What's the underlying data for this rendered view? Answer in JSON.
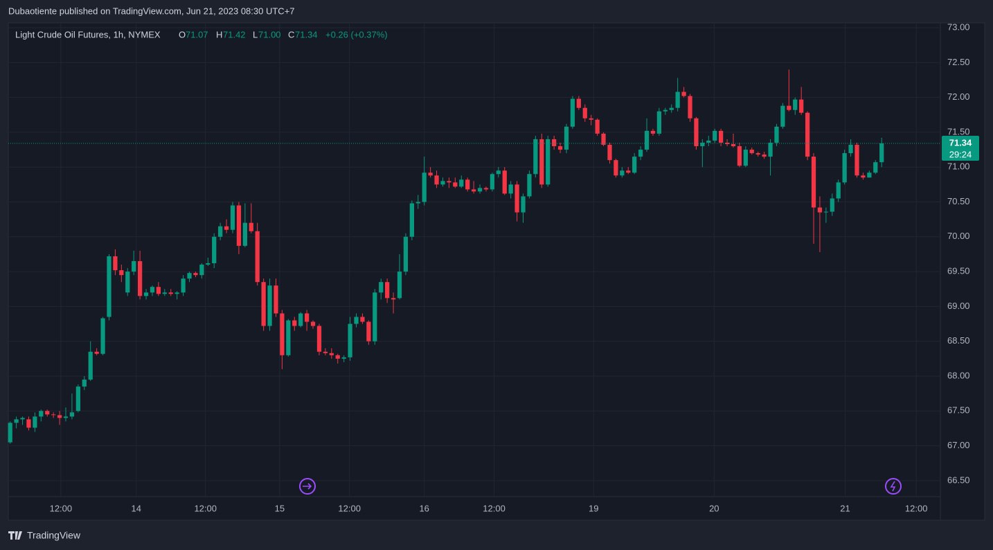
{
  "header": {
    "publisher": "Dubaotiente published on TradingView.com, Jun 21, 2023 08:30 UTC+7"
  },
  "legend": {
    "symbol": "Light Crude Oil Futures, 1h, NYMEX",
    "o_label": "O",
    "o": "71.07",
    "h_label": "H",
    "h": "71.42",
    "l_label": "L",
    "l": "71.00",
    "c_label": "C",
    "c": "71.34",
    "change": "+0.26 (+0.37%)"
  },
  "price_tag": {
    "price": "71.34",
    "countdown": "29:24"
  },
  "footer": {
    "logo": "TradingView"
  },
  "chart_data": {
    "type": "candlestick",
    "up_color": "#089981",
    "down_color": "#f23645",
    "grid": true,
    "ylim": [
      66.27,
      73.07
    ],
    "yticks": [
      {
        "value": 66.5,
        "label": "66.50"
      },
      {
        "value": 67,
        "label": "67.00"
      },
      {
        "value": 67.5,
        "label": "67.50"
      },
      {
        "value": 68,
        "label": "68.00"
      },
      {
        "value": 68.5,
        "label": "68.50"
      },
      {
        "value": 69,
        "label": "69.00"
      },
      {
        "value": 69.5,
        "label": "69.50"
      },
      {
        "value": 70,
        "label": "70.00"
      },
      {
        "value": 70.5,
        "label": "70.50"
      },
      {
        "value": 71,
        "label": "71.00"
      },
      {
        "value": 71.5,
        "label": "71.50"
      },
      {
        "value": 72,
        "label": "72.00"
      },
      {
        "value": 72.5,
        "label": "72.50"
      },
      {
        "value": 73,
        "label": "73.00"
      }
    ],
    "xlim": [
      -0.3,
      150.5
    ],
    "xticks": [
      {
        "value": 8.2,
        "label": "12:00"
      },
      {
        "value": 20.4,
        "label": "14"
      },
      {
        "value": 31.6,
        "label": "12:00"
      },
      {
        "value": 43.6,
        "label": "15"
      },
      {
        "value": 54.9,
        "label": "12:00"
      },
      {
        "value": 67.0,
        "label": "16"
      },
      {
        "value": 78.3,
        "label": "12:00"
      },
      {
        "value": 94.4,
        "label": "19"
      },
      {
        "value": 113.9,
        "label": "20"
      },
      {
        "value": 135.1,
        "label": "21"
      },
      {
        "value": 146.6,
        "label": "12:00"
      }
    ],
    "candles": [
      [
        67.05,
        67.35,
        67.03,
        67.33
      ],
      [
        67.33,
        67.42,
        67.25,
        67.38
      ],
      [
        67.38,
        67.42,
        67.3,
        67.4
      ],
      [
        67.38,
        67.42,
        67.22,
        67.26
      ],
      [
        67.26,
        67.48,
        67.2,
        67.42
      ],
      [
        67.42,
        67.52,
        67.35,
        67.5
      ],
      [
        67.5,
        67.52,
        67.42,
        67.45
      ],
      [
        67.45,
        67.48,
        67.4,
        67.44
      ],
      [
        67.44,
        67.5,
        67.3,
        67.4
      ],
      [
        67.4,
        67.55,
        67.35,
        67.42
      ],
      [
        67.42,
        67.75,
        67.38,
        67.48
      ],
      [
        67.5,
        67.88,
        67.48,
        67.85
      ],
      [
        67.85,
        68.0,
        67.8,
        67.95
      ],
      [
        67.95,
        68.5,
        67.93,
        68.35
      ],
      [
        68.35,
        68.4,
        68.3,
        68.32
      ],
      [
        68.32,
        68.85,
        68.3,
        68.83
      ],
      [
        68.85,
        69.75,
        68.8,
        69.72
      ],
      [
        69.72,
        69.82,
        69.45,
        69.52
      ],
      [
        69.52,
        69.6,
        69.35,
        69.45
      ],
      [
        69.2,
        69.55,
        69.15,
        69.5
      ],
      [
        69.5,
        69.8,
        69.45,
        69.65
      ],
      [
        69.65,
        69.8,
        69.1,
        69.15
      ],
      [
        69.15,
        69.25,
        69.1,
        69.2
      ],
      [
        69.2,
        69.3,
        69.15,
        69.28
      ],
      [
        69.28,
        69.35,
        69.15,
        69.18
      ],
      [
        69.18,
        69.25,
        69.15,
        69.2
      ],
      [
        69.2,
        69.25,
        69.15,
        69.18
      ],
      [
        69.18,
        69.22,
        69.1,
        69.2
      ],
      [
        69.2,
        69.45,
        69.15,
        69.4
      ],
      [
        69.4,
        69.5,
        69.35,
        69.48
      ],
      [
        69.48,
        69.5,
        69.42,
        69.45
      ],
      [
        69.45,
        69.62,
        69.4,
        69.6
      ],
      [
        69.6,
        69.7,
        69.58,
        69.62
      ],
      [
        69.62,
        70.05,
        69.55,
        70.0
      ],
      [
        70.0,
        70.2,
        69.95,
        70.15
      ],
      [
        70.15,
        70.25,
        70.05,
        70.1
      ],
      [
        70.1,
        70.5,
        70.05,
        70.45
      ],
      [
        70.45,
        70.5,
        69.75,
        69.87
      ],
      [
        69.87,
        70.48,
        69.85,
        70.2
      ],
      [
        70.2,
        70.48,
        70.05,
        70.08
      ],
      [
        70.08,
        70.2,
        69.3,
        69.35
      ],
      [
        69.35,
        69.4,
        68.65,
        68.72
      ],
      [
        68.72,
        69.4,
        68.65,
        69.3
      ],
      [
        69.3,
        69.4,
        68.85,
        68.9
      ],
      [
        68.9,
        68.95,
        68.1,
        68.3
      ],
      [
        68.3,
        68.82,
        68.28,
        68.8
      ],
      [
        68.8,
        68.85,
        68.65,
        68.72
      ],
      [
        68.72,
        68.92,
        68.7,
        68.9
      ],
      [
        68.9,
        68.95,
        68.65,
        68.78
      ],
      [
        68.78,
        68.8,
        68.68,
        68.72
      ],
      [
        68.72,
        68.75,
        68.3,
        68.35
      ],
      [
        68.35,
        68.4,
        68.3,
        68.33
      ],
      [
        68.33,
        68.4,
        68.25,
        68.3
      ],
      [
        68.3,
        68.32,
        68.18,
        68.25
      ],
      [
        68.25,
        68.3,
        68.2,
        68.27
      ],
      [
        68.27,
        68.85,
        68.22,
        68.75
      ],
      [
        68.75,
        68.9,
        68.7,
        68.85
      ],
      [
        68.85,
        68.9,
        68.75,
        68.78
      ],
      [
        68.78,
        68.8,
        68.45,
        68.5
      ],
      [
        68.5,
        69.25,
        68.45,
        69.2
      ],
      [
        69.2,
        69.4,
        69.1,
        69.35
      ],
      [
        69.35,
        69.4,
        69.05,
        69.12
      ],
      [
        69.12,
        69.2,
        68.9,
        69.1
      ],
      [
        69.12,
        69.75,
        69.1,
        69.5
      ],
      [
        69.5,
        70.05,
        69.45,
        70.0
      ],
      [
        70.0,
        70.52,
        69.95,
        70.48
      ],
      [
        70.48,
        70.6,
        70.4,
        70.5
      ],
      [
        70.5,
        71.15,
        70.45,
        70.92
      ],
      [
        70.92,
        71.0,
        70.85,
        70.88
      ],
      [
        70.88,
        70.95,
        70.7,
        70.75
      ],
      [
        70.75,
        70.85,
        70.72,
        70.8
      ],
      [
        70.8,
        70.85,
        70.7,
        70.78
      ],
      [
        70.78,
        70.85,
        70.7,
        70.72
      ],
      [
        70.72,
        70.88,
        70.7,
        70.82
      ],
      [
        70.82,
        70.85,
        70.65,
        70.68
      ],
      [
        70.68,
        70.8,
        70.62,
        70.65
      ],
      [
        70.65,
        70.75,
        70.62,
        70.7
      ],
      [
        70.7,
        70.72,
        70.65,
        70.68
      ],
      [
        70.68,
        70.92,
        70.65,
        70.9
      ],
      [
        70.9,
        71.0,
        70.85,
        70.95
      ],
      [
        70.95,
        71.0,
        70.6,
        70.62
      ],
      [
        70.62,
        70.8,
        70.55,
        70.75
      ],
      [
        70.75,
        70.8,
        70.22,
        70.35
      ],
      [
        70.35,
        70.62,
        70.2,
        70.58
      ],
      [
        70.58,
        70.95,
        70.55,
        70.9
      ],
      [
        70.9,
        71.45,
        70.85,
        71.4
      ],
      [
        71.4,
        71.48,
        70.7,
        70.75
      ],
      [
        70.75,
        71.45,
        70.72,
        71.4
      ],
      [
        71.4,
        71.45,
        71.25,
        71.3
      ],
      [
        71.3,
        71.35,
        71.2,
        71.25
      ],
      [
        71.25,
        71.62,
        71.2,
        71.58
      ],
      [
        71.58,
        72.02,
        71.55,
        71.98
      ],
      [
        71.98,
        72.02,
        71.82,
        71.85
      ],
      [
        71.85,
        71.9,
        71.65,
        71.7
      ],
      [
        71.7,
        71.75,
        71.6,
        71.68
      ],
      [
        71.68,
        71.7,
        71.45,
        71.48
      ],
      [
        71.48,
        71.5,
        71.3,
        71.32
      ],
      [
        71.32,
        71.35,
        71.05,
        71.1
      ],
      [
        71.1,
        71.12,
        70.85,
        70.88
      ],
      [
        70.88,
        71.0,
        70.85,
        70.95
      ],
      [
        70.95,
        71.0,
        70.9,
        70.92
      ],
      [
        70.92,
        71.2,
        70.9,
        71.15
      ],
      [
        71.15,
        71.3,
        71.1,
        71.25
      ],
      [
        71.25,
        71.7,
        71.22,
        71.52
      ],
      [
        71.52,
        71.55,
        71.45,
        71.48
      ],
      [
        71.48,
        71.85,
        71.45,
        71.8
      ],
      [
        71.8,
        71.85,
        71.75,
        71.82
      ],
      [
        71.82,
        71.9,
        71.78,
        71.85
      ],
      [
        71.85,
        72.28,
        71.8,
        72.08
      ],
      [
        72.08,
        72.15,
        72.0,
        72.02
      ],
      [
        72.02,
        72.05,
        71.65,
        71.7
      ],
      [
        71.7,
        71.72,
        71.25,
        71.3
      ],
      [
        71.3,
        71.4,
        71.0,
        71.35
      ],
      [
        71.35,
        71.45,
        71.3,
        71.38
      ],
      [
        71.38,
        71.55,
        71.35,
        71.52
      ],
      [
        71.52,
        71.55,
        71.3,
        71.35
      ],
      [
        71.35,
        71.4,
        71.3,
        71.33
      ],
      [
        71.33,
        71.48,
        71.28,
        71.3
      ],
      [
        71.3,
        71.35,
        71.0,
        71.02
      ],
      [
        71.02,
        71.3,
        71.0,
        71.25
      ],
      [
        71.25,
        71.28,
        71.18,
        71.2
      ],
      [
        71.2,
        71.22,
        71.15,
        71.18
      ],
      [
        71.18,
        71.22,
        71.12,
        71.15
      ],
      [
        71.15,
        71.4,
        70.88,
        71.35
      ],
      [
        71.35,
        71.62,
        71.3,
        71.58
      ],
      [
        71.58,
        71.92,
        71.55,
        71.88
      ],
      [
        71.88,
        72.4,
        71.8,
        71.82
      ],
      [
        71.82,
        72.0,
        71.75,
        71.97
      ],
      [
        71.97,
        72.15,
        71.75,
        71.78
      ],
      [
        71.78,
        71.8,
        71.1,
        71.15
      ],
      [
        71.15,
        71.2,
        69.9,
        70.42
      ],
      [
        70.42,
        70.58,
        69.78,
        70.35
      ],
      [
        70.35,
        70.42,
        70.2,
        70.36
      ],
      [
        70.36,
        70.62,
        70.3,
        70.55
      ],
      [
        70.55,
        70.82,
        70.5,
        70.78
      ],
      [
        70.78,
        71.25,
        70.75,
        71.2
      ],
      [
        71.2,
        71.4,
        71.15,
        71.32
      ],
      [
        71.32,
        71.35,
        70.85,
        70.88
      ],
      [
        70.88,
        70.92,
        70.82,
        70.85
      ],
      [
        70.85,
        70.95,
        70.85,
        70.92
      ],
      [
        70.92,
        71.1,
        70.9,
        71.07
      ],
      [
        71.07,
        71.42,
        71.0,
        71.34
      ]
    ]
  }
}
